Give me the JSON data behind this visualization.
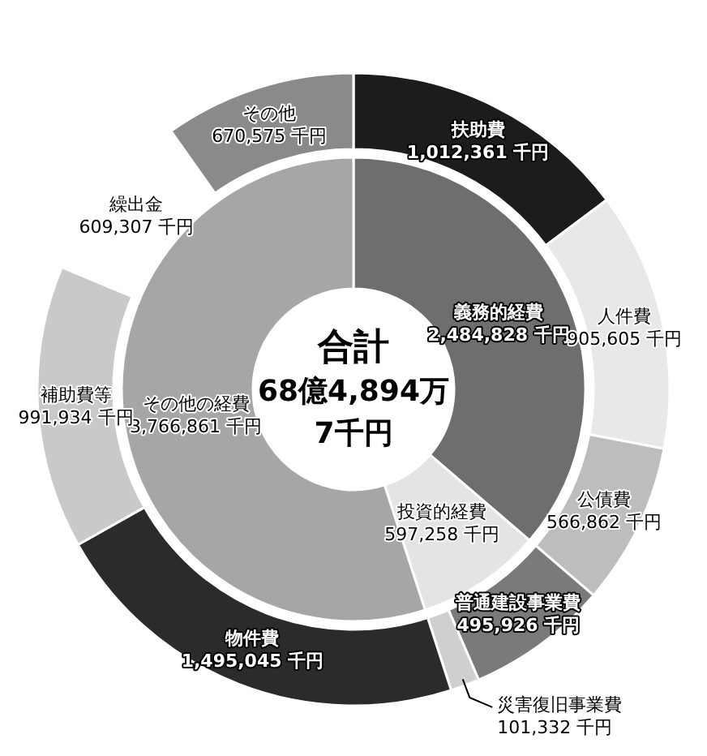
{
  "chart_data": [
    {
      "type": "donut",
      "title": "合計",
      "annotations": [
        "68億4,894万",
        "7千円"
      ],
      "categories": [
        "義務的経費",
        "投資的経費",
        "その他の経費"
      ],
      "values": [
        2484828,
        597258,
        3766861
      ],
      "value_labels": [
        "2,484,828 千円",
        "597,258 千円",
        "3,766,861 千円"
      ],
      "colors": [
        "#6e6e6e",
        "#e4e4e4",
        "#a6a6a6"
      ]
    },
    {
      "type": "donut",
      "categories": [
        "扶助費",
        "人件費",
        "公債費",
        "普通建設事業費",
        "災害復旧事業費",
        "物件費",
        "補助費等",
        "繰出金",
        "その他"
      ],
      "values": [
        1012361,
        905605,
        566862,
        495926,
        101332,
        1495045,
        991934,
        609307,
        670575
      ],
      "value_labels": [
        "1,012,361 千円",
        "905,605 千円",
        "566,862 千円",
        "495,926 千円",
        "101,332 千円",
        "1,495,045 千円",
        "991,934 千円",
        "609,307 千円",
        "670,575 千円"
      ],
      "colors": [
        "#1c1c1c",
        "#e8e8e8",
        "#bdbdbd",
        "#7a7a7a",
        "#cfcfcf",
        "#2b2b2b",
        "#c9c9c9",
        "#ffffff",
        "#8a8a8a"
      ]
    }
  ]
}
